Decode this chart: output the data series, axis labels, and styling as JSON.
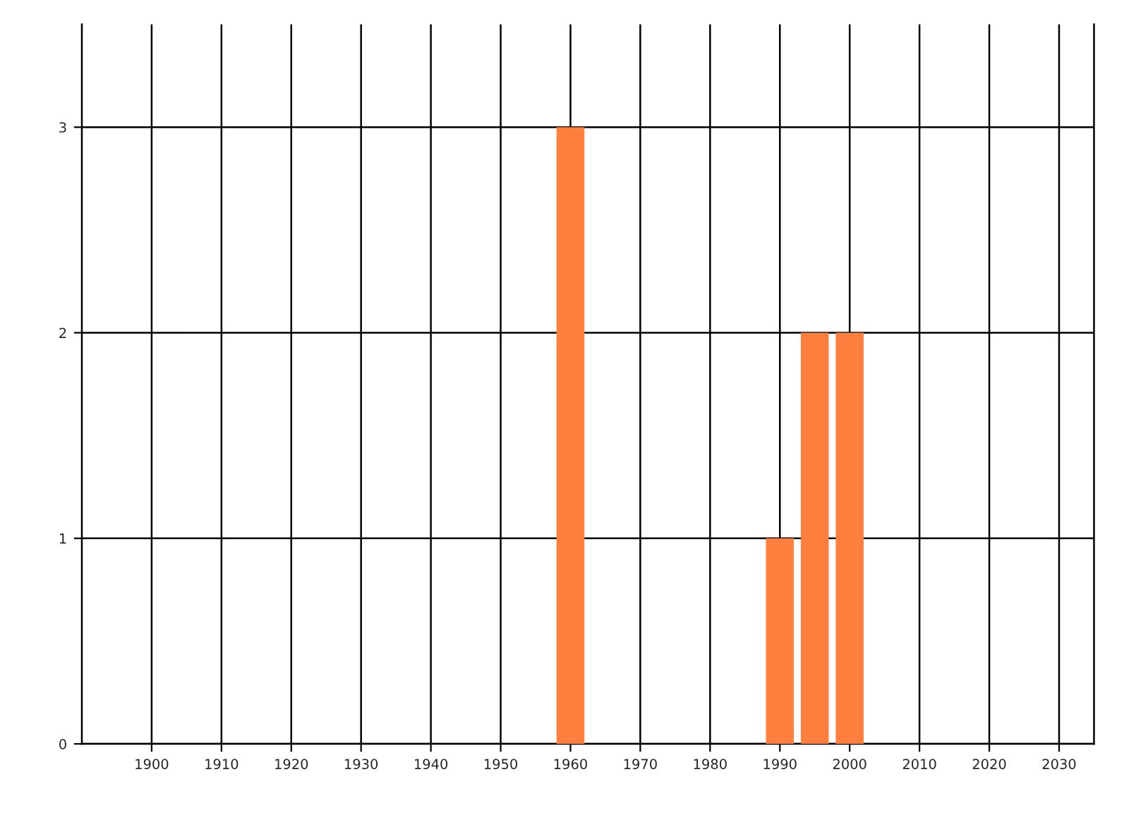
{
  "chart_data": {
    "type": "bar",
    "x": [
      1960,
      1990,
      1995,
      2000
    ],
    "values": [
      3,
      1,
      2,
      2
    ],
    "color": "#ff7f3f",
    "xlim": [
      1890,
      2035
    ],
    "xticks": [
      1900,
      1910,
      1920,
      1930,
      1940,
      1950,
      1960,
      1970,
      1980,
      1990,
      2000,
      2010,
      2020,
      2030
    ],
    "ylim": [
      0,
      3.5
    ],
    "yticks": [
      0,
      1,
      2,
      3
    ],
    "grid": true
  }
}
